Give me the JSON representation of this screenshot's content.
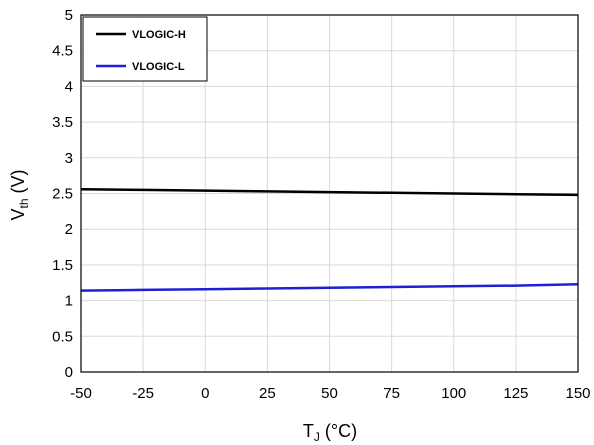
{
  "chart_data": {
    "type": "line",
    "xlabel": {
      "main": "T",
      "sub": "J",
      "rest": " (°C)"
    },
    "ylabel": {
      "main": "V",
      "sub": "th",
      "rest": " (V)"
    },
    "xlim": [
      -50,
      150
    ],
    "ylim": [
      0,
      5
    ],
    "x_ticks": [
      -50,
      -25,
      0,
      25,
      50,
      75,
      100,
      125,
      150
    ],
    "y_ticks": [
      0,
      0.5,
      1,
      1.5,
      2,
      2.5,
      3,
      3.5,
      4,
      4.5,
      5
    ],
    "x_tick_labels": [
      "-50",
      "-25",
      "0",
      "25",
      "50",
      "75",
      "100",
      "125",
      "150"
    ],
    "y_tick_labels": [
      "0",
      "0.5",
      "1",
      "1.5",
      "2",
      "2.5",
      "3",
      "3.5",
      "4",
      "4.5",
      "5"
    ],
    "grid": true,
    "legend_position": "top-left",
    "series": [
      {
        "name": "VLOGIC-H",
        "color": "#000000",
        "x": [
          -50,
          -25,
          0,
          25,
          50,
          75,
          100,
          125,
          150
        ],
        "y": [
          2.56,
          2.55,
          2.54,
          2.53,
          2.52,
          2.51,
          2.5,
          2.49,
          2.48
        ]
      },
      {
        "name": "VLOGIC-L",
        "color": "#1f1fd6",
        "x": [
          -50,
          -25,
          0,
          25,
          50,
          75,
          100,
          125,
          150
        ],
        "y": [
          1.14,
          1.15,
          1.16,
          1.17,
          1.18,
          1.19,
          1.2,
          1.21,
          1.23
        ]
      }
    ]
  }
}
